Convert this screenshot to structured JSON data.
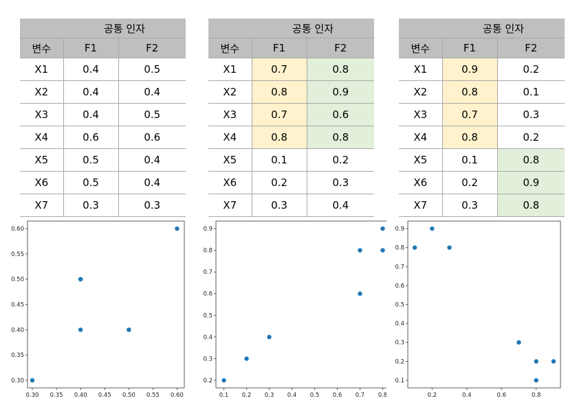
{
  "header": {
    "group": "공통 인자",
    "var": "변수",
    "f1": "F1",
    "f2": "F2"
  },
  "tables": [
    {
      "rows": [
        {
          "var": "X1",
          "f1": "0.4",
          "f2": "0.5"
        },
        {
          "var": "X2",
          "f1": "0.4",
          "f2": "0.4"
        },
        {
          "var": "X3",
          "f1": "0.4",
          "f2": "0.5"
        },
        {
          "var": "X4",
          "f1": "0.6",
          "f2": "0.6"
        },
        {
          "var": "X5",
          "f1": "0.5",
          "f2": "0.4"
        },
        {
          "var": "X6",
          "f1": "0.5",
          "f2": "0.4"
        },
        {
          "var": "X7",
          "f1": "0.3",
          "f2": "0.3"
        }
      ]
    },
    {
      "rows": [
        {
          "var": "X1",
          "f1": "0.7",
          "f2": "0.8"
        },
        {
          "var": "X2",
          "f1": "0.8",
          "f2": "0.9"
        },
        {
          "var": "X3",
          "f1": "0.7",
          "f2": "0.6"
        },
        {
          "var": "X4",
          "f1": "0.8",
          "f2": "0.8"
        },
        {
          "var": "X5",
          "f1": "0.1",
          "f2": "0.2"
        },
        {
          "var": "X6",
          "f1": "0.2",
          "f2": "0.3"
        },
        {
          "var": "X7",
          "f1": "0.3",
          "f2": "0.4"
        }
      ]
    },
    {
      "rows": [
        {
          "var": "X1",
          "f1": "0.9",
          "f2": "0.2"
        },
        {
          "var": "X2",
          "f1": "0.8",
          "f2": "0.1"
        },
        {
          "var": "X3",
          "f1": "0.7",
          "f2": "0.3"
        },
        {
          "var": "X4",
          "f1": "0.8",
          "f2": "0.2"
        },
        {
          "var": "X5",
          "f1": "0.1",
          "f2": "0.8"
        },
        {
          "var": "X6",
          "f1": "0.2",
          "f2": "0.9"
        },
        {
          "var": "X7",
          "f1": "0.3",
          "f2": "0.8"
        }
      ]
    }
  ],
  "colors": {
    "header_bg": "#bfbfbf",
    "highlight_f1": "#fff2cc",
    "highlight_f2": "#e2efda",
    "point": "#1f77b4"
  },
  "chart_data": [
    {
      "type": "scatter",
      "x": [
        0.4,
        0.4,
        0.4,
        0.6,
        0.5,
        0.5,
        0.3
      ],
      "y": [
        0.5,
        0.4,
        0.5,
        0.6,
        0.4,
        0.4,
        0.3
      ],
      "xlim": [
        0.29,
        0.615
      ],
      "ylim": [
        0.285,
        0.615
      ],
      "xticks": [
        "0.30",
        "0.35",
        "0.40",
        "0.45",
        "0.50",
        "0.55",
        "0.60"
      ],
      "yticks": [
        "0.30",
        "0.35",
        "0.40",
        "0.45",
        "0.50",
        "0.55",
        "0.60"
      ],
      "grid": false
    },
    {
      "type": "scatter",
      "x": [
        0.7,
        0.8,
        0.7,
        0.8,
        0.1,
        0.2,
        0.3
      ],
      "y": [
        0.8,
        0.9,
        0.6,
        0.8,
        0.2,
        0.3,
        0.4
      ],
      "xlim": [
        0.065,
        0.835
      ],
      "ylim": [
        0.165,
        0.935
      ],
      "xticks": [
        "0.1",
        "0.2",
        "0.3",
        "0.4",
        "0.5",
        "0.6",
        "0.7",
        "0.8"
      ],
      "yticks": [
        "0.2",
        "0.3",
        "0.4",
        "0.5",
        "0.6",
        "0.7",
        "0.8",
        "0.9"
      ],
      "grid": false
    },
    {
      "type": "scatter",
      "x": [
        0.9,
        0.8,
        0.7,
        0.8,
        0.1,
        0.2,
        0.3
      ],
      "y": [
        0.2,
        0.1,
        0.3,
        0.2,
        0.8,
        0.9,
        0.8
      ],
      "xlim": [
        0.06,
        0.94
      ],
      "ylim": [
        0.06,
        0.94
      ],
      "xticks": [
        "0.2",
        "0.4",
        "0.6",
        "0.8"
      ],
      "yticks": [
        "0.1",
        "0.2",
        "0.3",
        "0.4",
        "0.5",
        "0.6",
        "0.7",
        "0.8",
        "0.9"
      ],
      "grid": false
    }
  ]
}
